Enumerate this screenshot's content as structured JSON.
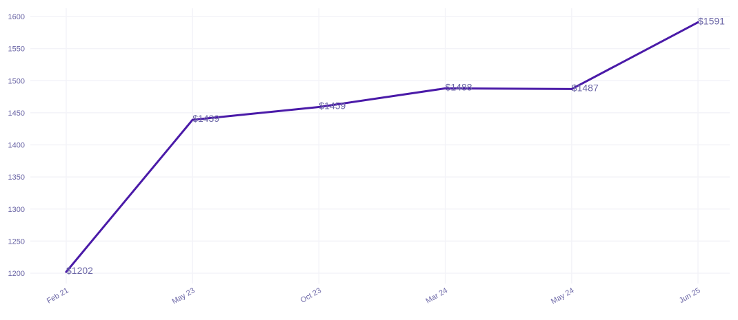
{
  "chart_data": {
    "type": "line",
    "title": "",
    "xlabel": "",
    "ylabel": "",
    "categories": [
      "Feb 21",
      "May 23",
      "Oct 23",
      "Mar 24",
      "May 24",
      "Jun 25"
    ],
    "series": [
      {
        "values": [
          1202,
          1439,
          1459,
          1488,
          1487,
          1591
        ],
        "labels": [
          "$1202",
          "$1439",
          "$1459",
          "$1488",
          "$1487",
          "$1591"
        ]
      }
    ],
    "ylim": [
      1200,
      1600
    ],
    "yticks": [
      1200,
      1250,
      1300,
      1350,
      1400,
      1450,
      1500,
      1550,
      1600
    ],
    "grid": true,
    "legend": "none"
  },
  "colors": {
    "line": "#4a1aa8",
    "tick_text": "#6b66a6",
    "label_text": "#6b66a6",
    "grid": "#f3f3f8"
  }
}
